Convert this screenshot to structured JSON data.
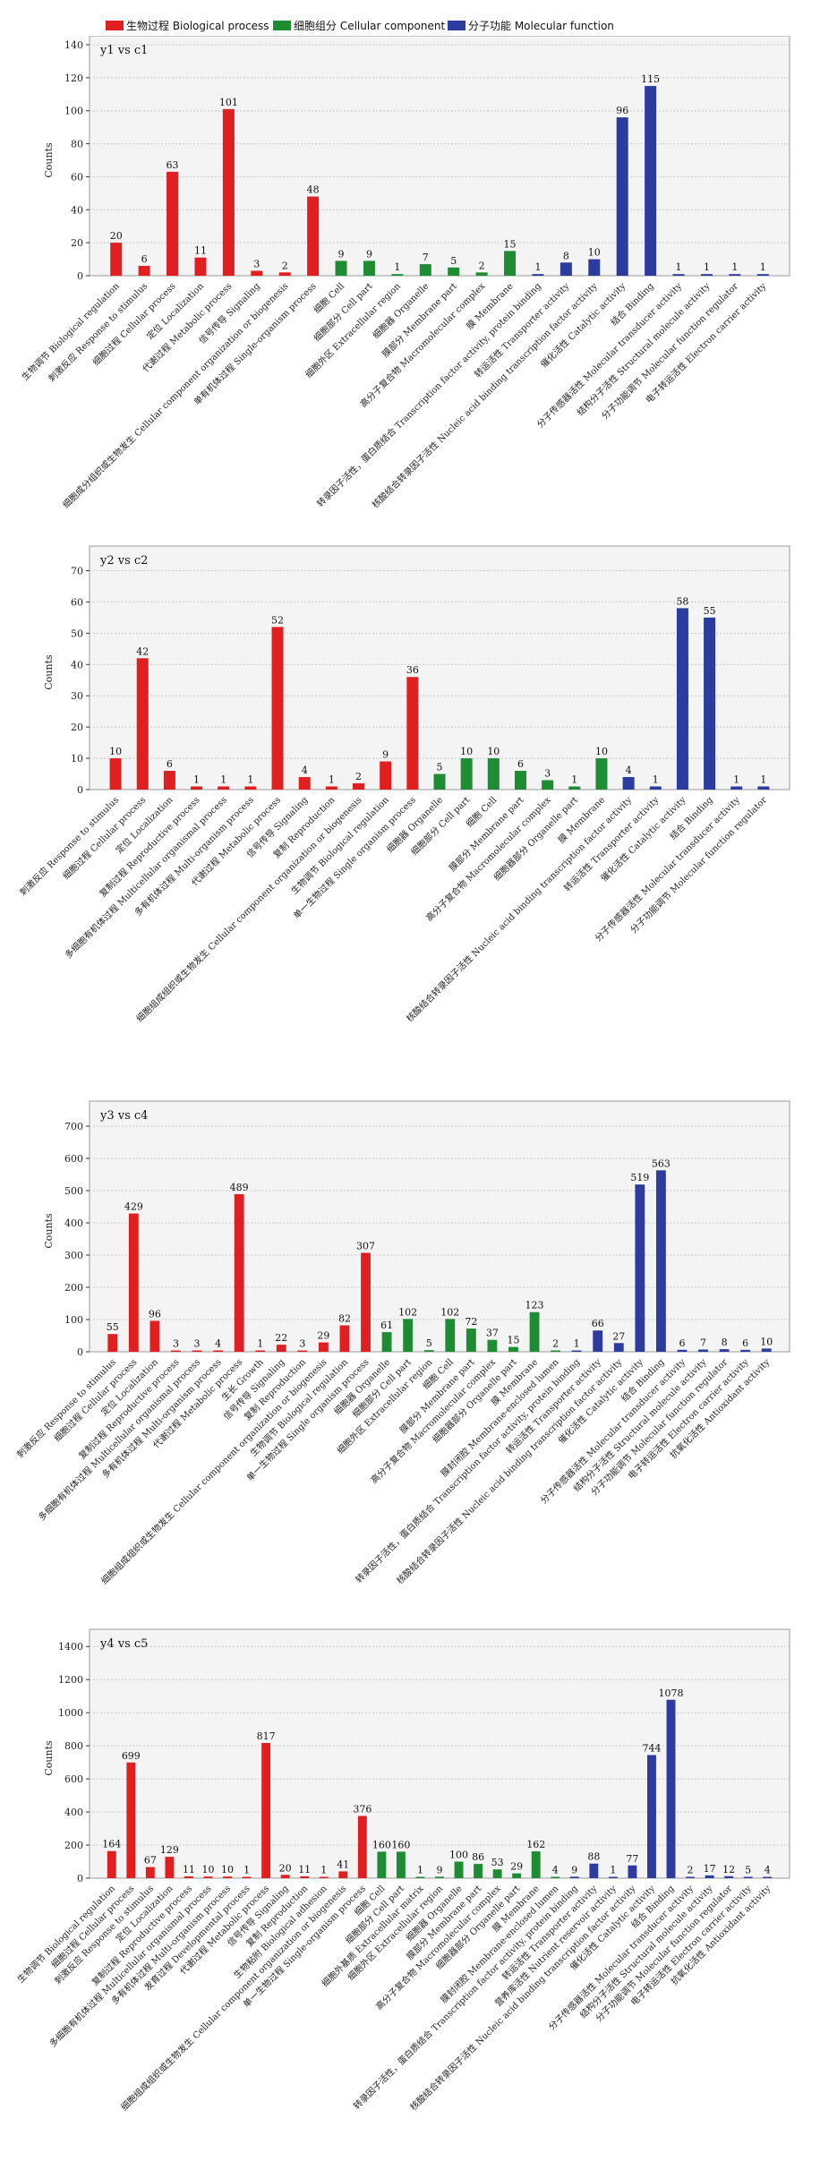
{
  "legend": [
    {
      "label": "生物过程 Biological process",
      "color": "#e02020"
    },
    {
      "label": "细胞组分 Cellular component",
      "color": "#1e8c32"
    },
    {
      "label": "分子功能 Molecular function",
      "color": "#2c3b9e"
    }
  ],
  "chart_data": [
    {
      "type": "bar",
      "title": "y1 vs c1",
      "ylabel": "Counts",
      "ylim": [
        0,
        140
      ],
      "yticks": [
        0,
        20,
        40,
        60,
        80,
        100,
        120,
        140
      ],
      "grid": true,
      "categories": [
        "生物调节 Biological regulation",
        "刺激反应 Response to stimulus",
        "细胞过程 Cellular process",
        "定位 Localization",
        "代谢过程 Metabolic process",
        "信号传导 Signaling",
        "细胞成分组织或生物发生 Cellular component organization or biogenesis",
        "单有机体过程 Single-organism process",
        "细胞 Cell",
        "细胞部分 Cell part",
        "细胞外区 Extracellular region",
        "细胞器 Organelle",
        "膜部分 Membrane part",
        "高分子复合物 Macromolecular complex",
        "膜 Membrane",
        "转录因子活性，蛋白质结合 Transcription factor activity, protein binding",
        "转运活性 Transporter activity",
        "核酸结合转录因子活性 Nucleic acid binding transcription factor activity",
        "催化活性 Catalytic activity",
        "结合 Binding",
        "分子传感器活性 Molecular transducer activity",
        "结构分子活性 Structural molecule activity",
        "分子功能调节 Molecular function regulator",
        "电子转运活性 Electron carrier activity"
      ],
      "values": [
        20,
        6,
        63,
        11,
        101,
        3,
        2,
        48,
        9,
        9,
        1,
        7,
        5,
        2,
        15,
        1,
        8,
        10,
        96,
        115,
        1,
        1,
        1,
        1
      ],
      "groups": [
        "bp",
        "bp",
        "bp",
        "bp",
        "bp",
        "bp",
        "bp",
        "bp",
        "cc",
        "cc",
        "cc",
        "cc",
        "cc",
        "cc",
        "cc",
        "mf",
        "mf",
        "mf",
        "mf",
        "mf",
        "mf",
        "mf",
        "mf",
        "mf"
      ]
    },
    {
      "type": "bar",
      "title": "y2 vs c2",
      "ylabel": "Counts",
      "ylim": [
        0,
        75
      ],
      "yticks": [
        0,
        10,
        20,
        30,
        40,
        50,
        60,
        70
      ],
      "grid": true,
      "categories": [
        "刺激反应 Response to stimulus",
        "细胞过程 Cellular process",
        "定位 Localization",
        "复制过程 Reproductive process",
        "多细胞有机体过程 Multicellular organismal process",
        "多有机体过程 Multi-organism process",
        "代谢过程 Metabolic process",
        "信号传导 Signaling",
        "复制 Reproduction",
        "细胞组成组织或生物发生 Cellular component organization or biogenesis",
        "生物调节 Biological regulation",
        "单一生物过程 Single organism process",
        "细胞器 Organelle",
        "细胞部分 Cell part",
        "细胞 Cell",
        "膜部分 Membrane part",
        "高分子复合物 Macromolecular complex",
        "细胞器部分 Organelle part",
        "膜 Membrane",
        "核酸结合转录因子活性 Nucleic acid binding transcription factor activity",
        "转运活性 Transporter activity",
        "催化活性 Catalytic activity",
        "结合 Binding",
        "分子传感器活性 Molecular transducer activity",
        "分子功能调节 Molecular function regulator"
      ],
      "values": [
        10,
        42,
        6,
        1,
        1,
        1,
        52,
        4,
        1,
        2,
        9,
        36,
        5,
        10,
        10,
        6,
        3,
        1,
        10,
        4,
        1,
        58,
        55,
        1,
        1
      ],
      "groups": [
        "bp",
        "bp",
        "bp",
        "bp",
        "bp",
        "bp",
        "bp",
        "bp",
        "bp",
        "bp",
        "bp",
        "bp",
        "cc",
        "cc",
        "cc",
        "cc",
        "cc",
        "cc",
        "cc",
        "mf",
        "mf",
        "mf",
        "mf",
        "mf",
        "mf"
      ]
    },
    {
      "type": "bar",
      "title": "y3 vs c4",
      "ylabel": "Counts",
      "ylim": [
        0,
        750
      ],
      "yticks": [
        0,
        100,
        200,
        300,
        400,
        500,
        600,
        700
      ],
      "grid": true,
      "categories": [
        "刺激反应 Response to stimulus",
        "细胞过程 Cellular process",
        "定位 Localization",
        "复制过程 Reproductive process",
        "多细胞有机体过程 Multicellular organismal process",
        "多有机体过程 Multi-organism process",
        "代谢过程 Metabolic process",
        "生长 Growth",
        "信号传导 Signaling",
        "复制 Reproduction",
        "细胞组成组织或生物发生 Cellular component organization or biogenesis",
        "生物调节 Biological regulation",
        "单一生物过程 Single organism process",
        "细胞器 Organelle",
        "细胞部分 Cell part",
        "细胞外区 Extracellular region",
        "细胞 Cell",
        "膜部分 Membrane part",
        "高分子复合物 Macromolecular complex",
        "细胞器部分 Organelle part",
        "膜 Membrane",
        "膜封闭腔 Membrane-enclosed lumen",
        "转录因子活性，蛋白质结合 Transcription factor activity, protein binding",
        "转运活性 Transporter activity",
        "核酸结合转录因子活性 Nucleic acid binding transcription factor activity",
        "催化活性 Catalytic activity",
        "结合 Binding",
        "分子传感器活性 Molecular transducer activity",
        "结构分子活性 Structural molecule activity",
        "分子功能调节 Molecular function regulator",
        "电子转运活性 Electron carrier activity",
        "抗氧化活性 Antioxidant activity"
      ],
      "values": [
        55,
        429,
        96,
        3,
        3,
        4,
        489,
        1,
        22,
        3,
        29,
        82,
        307,
        61,
        102,
        5,
        102,
        72,
        37,
        15,
        123,
        2,
        1,
        66,
        27,
        519,
        563,
        6,
        7,
        8,
        6,
        10
      ],
      "groups": [
        "bp",
        "bp",
        "bp",
        "bp",
        "bp",
        "bp",
        "bp",
        "bp",
        "bp",
        "bp",
        "bp",
        "bp",
        "bp",
        "cc",
        "cc",
        "cc",
        "cc",
        "cc",
        "cc",
        "cc",
        "cc",
        "cc",
        "mf",
        "mf",
        "mf",
        "mf",
        "mf",
        "mf",
        "mf",
        "mf",
        "mf",
        "mf"
      ]
    },
    {
      "type": "bar",
      "title": "y4 vs c5",
      "ylabel": "Counts",
      "ylim": [
        0,
        1450
      ],
      "yticks": [
        0,
        200,
        400,
        600,
        800,
        1000,
        1200,
        1400
      ],
      "grid": true,
      "categories": [
        "生物调节 Biological regulation",
        "细胞过程 Cellular process",
        "刺激反应 Response to stimulus",
        "定位 Localization",
        "复制过程 Reproductive process",
        "多细胞有机体过程 Multicellular organismal process",
        "多有机体过程 Multi-organism process",
        "发育过程 Developmental process",
        "代谢过程 Metabolic process",
        "信号传导 Signaling",
        "复制 Reproduction",
        "生物粘附 Biological adhesion",
        "细胞组成组织或生物发生 Cellular component organization or biogenesis",
        "单一生物过程 Single-organism process",
        "细胞 Cell",
        "细胞部分 Cell part",
        "细胞外基质 Extracellular matrix",
        "细胞外区 Extracellular region",
        "细胞器 Organelle",
        "膜部分 Membrane part",
        "高分子复合物 Macromolecular complex",
        "细胞器部分 Organelle part",
        "膜 Membrane",
        "膜封闭腔 Membrane-enclosed lumen",
        "转录因子活性，蛋白质结合 Transcription factor activity, protein binding",
        "转运活性 Transporter activity",
        "营养库活性 Nutrient reservoir activity",
        "核酸结合转录因子活性 Nucleic acid binding transcription factor activity",
        "催化活性 Catalytic activity",
        "结合 Binding",
        "分子传感器活性 Molecular transducer activity",
        "结构分子活性 Structural molecule activity",
        "分子功能调节 Molecular function regulator",
        "电子转运活性 Electron carrier activity",
        "抗氧化活性 Antioxidant activity"
      ],
      "values": [
        164,
        699,
        67,
        129,
        11,
        10,
        10,
        1,
        817,
        20,
        11,
        1,
        41,
        376,
        160,
        160,
        1,
        9,
        100,
        86,
        53,
        29,
        162,
        4,
        9,
        88,
        1,
        77,
        744,
        1078,
        2,
        17,
        12,
        5,
        4
      ],
      "groups": [
        "bp",
        "bp",
        "bp",
        "bp",
        "bp",
        "bp",
        "bp",
        "bp",
        "bp",
        "bp",
        "bp",
        "bp",
        "bp",
        "bp",
        "cc",
        "cc",
        "cc",
        "cc",
        "cc",
        "cc",
        "cc",
        "cc",
        "cc",
        "cc",
        "mf",
        "mf",
        "mf",
        "mf",
        "mf",
        "mf",
        "mf",
        "mf",
        "mf",
        "mf",
        "mf"
      ]
    }
  ]
}
